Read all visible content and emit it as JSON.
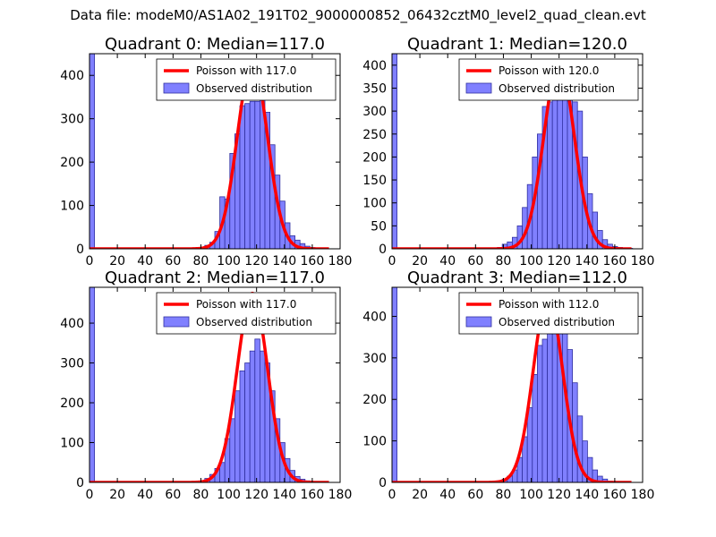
{
  "figure": {
    "title": "Data file: modeM0/AS1A02_191T02_9000000852_06432cztM0_level2_quad_clean.evt"
  },
  "colors": {
    "bar_fill": "#8080ff",
    "bar_edge": "#3030a0",
    "poisson_line": "#ff0000",
    "axes": "#000000"
  },
  "chart_data": [
    {
      "type": "bar",
      "title": "Quadrant 0: Median=117.0",
      "xlim": [
        0,
        180
      ],
      "ylim": [
        0,
        450
      ],
      "xticks": [
        0,
        20,
        40,
        60,
        80,
        100,
        120,
        140,
        160,
        180
      ],
      "yticks": [
        0,
        100,
        200,
        300,
        400
      ],
      "bin_width": 3.6,
      "legend": [
        "Poisson with 117.0",
        "Observed distribution"
      ],
      "bins": [
        0,
        3.6,
        79.2,
        82.8,
        86.4,
        90,
        93.6,
        97.2,
        100.8,
        104.4,
        108,
        111.6,
        115.2,
        118.8,
        122.4,
        126,
        129.6,
        133.2,
        136.8,
        140.4,
        144,
        147.6,
        151.2,
        154.8,
        158.4,
        162,
        165.6
      ],
      "counts": [
        450,
        0,
        2,
        8,
        15,
        40,
        120,
        115,
        220,
        265,
        330,
        335,
        340,
        340,
        345,
        315,
        240,
        170,
        110,
        60,
        30,
        20,
        12,
        6,
        3,
        1,
        1
      ],
      "poisson_mean": 117.0,
      "poisson_peak": 430
    },
    {
      "type": "bar",
      "title": "Quadrant 1: Median=120.0",
      "xlim": [
        0,
        180
      ],
      "ylim": [
        0,
        425
      ],
      "xticks": [
        0,
        20,
        40,
        60,
        80,
        100,
        120,
        140,
        160,
        180
      ],
      "yticks": [
        0,
        50,
        100,
        150,
        200,
        250,
        300,
        350,
        400
      ],
      "bin_width": 3.6,
      "legend": [
        "Poisson with 120.0",
        "Observed distribution"
      ],
      "bins": [
        0,
        3.6,
        75.6,
        79.2,
        82.8,
        86.4,
        90,
        93.6,
        97.2,
        100.8,
        104.4,
        108,
        111.6,
        115.2,
        118.8,
        122.4,
        126,
        129.6,
        133.2,
        136.8,
        140.4,
        144,
        147.6,
        151.2,
        154.8,
        158.4,
        162,
        165.6,
        169.2
      ],
      "counts": [
        425,
        0,
        3,
        10,
        15,
        25,
        50,
        90,
        140,
        200,
        250,
        310,
        320,
        350,
        385,
        400,
        350,
        320,
        300,
        200,
        120,
        80,
        40,
        20,
        10,
        5,
        3,
        2,
        1
      ],
      "poisson_mean": 120.0,
      "poisson_peak": 405
    },
    {
      "type": "bar",
      "title": "Quadrant 2: Median=117.0",
      "xlim": [
        0,
        180
      ],
      "ylim": [
        0,
        490
      ],
      "xticks": [
        0,
        20,
        40,
        60,
        80,
        100,
        120,
        140,
        160,
        180
      ],
      "yticks": [
        0,
        100,
        200,
        300,
        400
      ],
      "bin_width": 3.6,
      "legend": [
        "Poisson with 117.0",
        "Observed distribution"
      ],
      "bins": [
        0,
        3.6,
        75.6,
        79.2,
        82.8,
        86.4,
        90,
        93.6,
        97.2,
        100.8,
        104.4,
        108,
        111.6,
        115.2,
        118.8,
        122.4,
        126,
        129.6,
        133.2,
        136.8,
        140.4,
        144,
        147.6,
        151.2,
        154.8,
        158.4,
        162,
        165.6
      ],
      "counts": [
        490,
        0,
        1,
        2,
        10,
        20,
        35,
        50,
        110,
        160,
        230,
        280,
        300,
        330,
        360,
        330,
        300,
        230,
        160,
        100,
        60,
        30,
        15,
        8,
        4,
        2,
        1,
        1
      ],
      "poisson_mean": 117.0,
      "poisson_peak": 475
    },
    {
      "type": "bar",
      "title": "Quadrant 3: Median=112.0",
      "xlim": [
        0,
        180
      ],
      "ylim": [
        0,
        470
      ],
      "xticks": [
        0,
        20,
        40,
        60,
        80,
        100,
        120,
        140,
        160,
        180
      ],
      "yticks": [
        0,
        100,
        200,
        300,
        400
      ],
      "bin_width": 3.6,
      "legend": [
        "Poisson with 112.0",
        "Observed distribution"
      ],
      "bins": [
        0,
        3.6,
        72,
        75.6,
        79.2,
        82.8,
        86.4,
        90,
        93.6,
        97.2,
        100.8,
        104.4,
        108,
        111.6,
        115.2,
        118.8,
        122.4,
        126,
        129.6,
        133.2,
        136.8,
        140.4,
        144,
        147.6,
        151.2,
        154.8
      ],
      "counts": [
        470,
        0,
        2,
        4,
        8,
        15,
        30,
        60,
        110,
        180,
        260,
        330,
        345,
        400,
        440,
        420,
        380,
        320,
        240,
        160,
        100,
        60,
        30,
        15,
        8,
        3
      ],
      "poisson_mean": 112.0,
      "poisson_peak": 445
    }
  ]
}
